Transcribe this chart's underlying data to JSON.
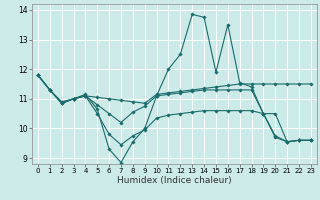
{
  "xlabel": "Humidex (Indice chaleur)",
  "bg_color": "#cceae8",
  "grid_color": "#ffffff",
  "line_color": "#1a6b6b",
  "xlim": [
    -0.5,
    23.5
  ],
  "ylim": [
    8.8,
    14.2
  ],
  "xticks": [
    0,
    1,
    2,
    3,
    4,
    5,
    6,
    7,
    8,
    9,
    10,
    11,
    12,
    13,
    14,
    15,
    16,
    17,
    18,
    19,
    20,
    21,
    22,
    23
  ],
  "yticks": [
    9,
    10,
    11,
    12,
    13,
    14
  ],
  "series": {
    "line1": {
      "x": [
        0,
        1,
        2,
        3,
        4,
        5,
        6,
        7,
        8,
        9,
        10,
        11,
        12,
        13,
        14,
        15,
        16,
        17,
        18,
        19,
        20,
        21,
        22,
        23
      ],
      "y": [
        11.8,
        11.3,
        10.9,
        11.0,
        11.15,
        10.65,
        9.3,
        8.85,
        9.55,
        10.0,
        11.1,
        12.0,
        12.5,
        13.85,
        13.75,
        11.9,
        13.5,
        11.55,
        11.4,
        10.5,
        9.7,
        9.55,
        9.6,
        9.6
      ]
    },
    "line2": {
      "x": [
        0,
        1,
        2,
        3,
        4,
        5,
        6,
        7,
        8,
        9,
        10,
        11,
        12,
        13,
        14,
        15,
        16,
        17,
        18,
        19,
        20,
        21,
        22,
        23
      ],
      "y": [
        11.8,
        11.3,
        10.85,
        11.0,
        11.1,
        11.05,
        11.0,
        10.95,
        10.9,
        10.85,
        11.15,
        11.2,
        11.25,
        11.3,
        11.35,
        11.4,
        11.45,
        11.5,
        11.5,
        11.5,
        11.5,
        11.5,
        11.5,
        11.5
      ]
    },
    "line3": {
      "x": [
        0,
        1,
        2,
        3,
        4,
        5,
        6,
        7,
        8,
        9,
        10,
        11,
        12,
        13,
        14,
        15,
        16,
        17,
        18,
        19,
        20,
        21,
        22,
        23
      ],
      "y": [
        11.8,
        11.3,
        10.85,
        11.0,
        11.1,
        10.5,
        9.8,
        9.45,
        9.75,
        9.95,
        10.35,
        10.45,
        10.5,
        10.55,
        10.6,
        10.6,
        10.6,
        10.6,
        10.6,
        10.5,
        9.75,
        9.55,
        9.6,
        9.6
      ]
    },
    "line4": {
      "x": [
        0,
        1,
        2,
        3,
        4,
        5,
        6,
        7,
        8,
        9,
        10,
        11,
        12,
        13,
        14,
        15,
        16,
        17,
        18,
        19,
        20,
        21,
        22,
        23
      ],
      "y": [
        11.8,
        11.3,
        10.85,
        11.0,
        11.1,
        10.8,
        10.5,
        10.2,
        10.55,
        10.75,
        11.1,
        11.15,
        11.2,
        11.25,
        11.3,
        11.3,
        11.3,
        11.3,
        11.3,
        10.5,
        10.5,
        9.55,
        9.6,
        9.6
      ]
    }
  }
}
